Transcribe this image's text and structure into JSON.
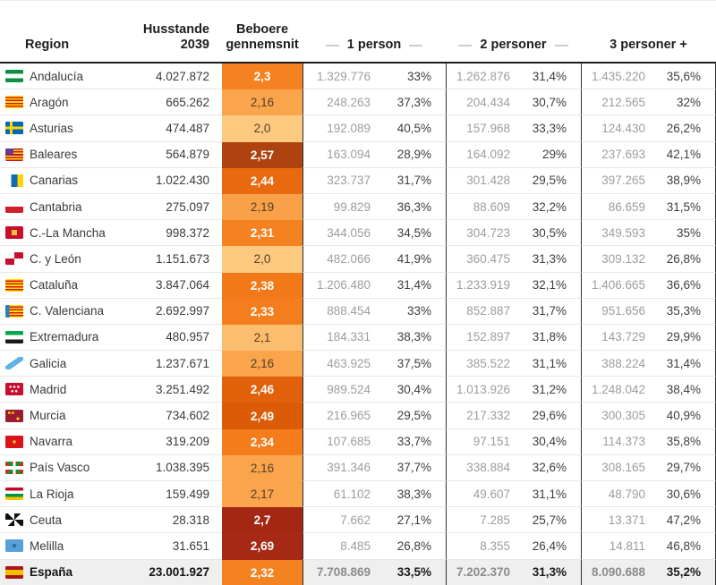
{
  "header": {
    "region": "Region",
    "husstande_line1": "Husstande",
    "husstande_line2": "2039",
    "beboere_line1": "Beboere",
    "beboere_line2": "gennemsnit",
    "group1": "1 person",
    "group2": "2 personer",
    "group3": "3 personer +"
  },
  "colors": {
    "header_border": "#1c1c1c",
    "group_divider": "#2f2f2f",
    "row_divider": "#e7e7e7",
    "total_row_bg": "#efefef",
    "count_text": "#9d9d9d",
    "percent_text": "#3e3e3e",
    "heat_low": "#FCC97F",
    "heat_mid": "#F58220",
    "heat_high": "#A42714"
  },
  "chart_data": {
    "type": "table",
    "columns": [
      "Region",
      "Husstande 2039",
      "Beboere gennemsnit",
      "1 person",
      "1 person %",
      "2 personer",
      "2 personer %",
      "3 personer +",
      "3 personer + %"
    ],
    "rows": [
      {
        "region": "Andalucía",
        "flag": "andalucia",
        "husstande": "4.027.872",
        "beboere": "2,3",
        "heat_color": "#F58220",
        "heat_text_color": "#ffffff",
        "p1_count": "1.329.776",
        "p1_pct": "33%",
        "p2_count": "1.262.876",
        "p2_pct": "31,4%",
        "p3_count": "1.435.220",
        "p3_pct": "35,6%"
      },
      {
        "region": "Aragón",
        "flag": "aragon",
        "husstande": "665.262",
        "beboere": "2,16",
        "heat_color": "#FAA54C",
        "heat_text_color": "#54402e",
        "p1_count": "248.263",
        "p1_pct": "37,3%",
        "p2_count": "204.434",
        "p2_pct": "30,7%",
        "p3_count": "212.565",
        "p3_pct": "32%"
      },
      {
        "region": "Asturias",
        "flag": "asturias",
        "husstande": "474.487",
        "beboere": "2,0",
        "heat_color": "#FCC97F",
        "heat_text_color": "#54402e",
        "p1_count": "192.089",
        "p1_pct": "40,5%",
        "p2_count": "157.968",
        "p2_pct": "33,3%",
        "p3_count": "124.430",
        "p3_pct": "26,2%"
      },
      {
        "region": "Baleares",
        "flag": "baleares",
        "husstande": "564.879",
        "beboere": "2,57",
        "heat_color": "#AE430F",
        "heat_text_color": "#ffffff",
        "p1_count": "163.094",
        "p1_pct": "28,9%",
        "p2_count": "164.092",
        "p2_pct": "29%",
        "p3_count": "237.693",
        "p3_pct": "42,1%"
      },
      {
        "region": "Canarias",
        "flag": "canarias",
        "husstande": "1.022.430",
        "beboere": "2,44",
        "heat_color": "#E8690F",
        "heat_text_color": "#ffffff",
        "p1_count": "323.737",
        "p1_pct": "31,7%",
        "p2_count": "301.428",
        "p2_pct": "29,5%",
        "p3_count": "397.265",
        "p3_pct": "38,9%"
      },
      {
        "region": "Cantabria",
        "flag": "cantabria",
        "husstande": "275.097",
        "beboere": "2,19",
        "heat_color": "#F9A148",
        "heat_text_color": "#54402e",
        "p1_count": "99.829",
        "p1_pct": "36,3%",
        "p2_count": "88.609",
        "p2_pct": "32,2%",
        "p3_count": "86.659",
        "p3_pct": "31,5%"
      },
      {
        "region": "C.-La Mancha",
        "flag": "clamancha",
        "husstande": "998.372",
        "beboere": "2,31",
        "heat_color": "#F58220",
        "heat_text_color": "#ffffff",
        "p1_count": "344.056",
        "p1_pct": "34,5%",
        "p2_count": "304.723",
        "p2_pct": "30,5%",
        "p3_count": "349.593",
        "p3_pct": "35%"
      },
      {
        "region": "C. y León",
        "flag": "cyleon",
        "husstande": "1.151.673",
        "beboere": "2,0",
        "heat_color": "#FCC97F",
        "heat_text_color": "#54402e",
        "p1_count": "482.066",
        "p1_pct": "41,9%",
        "p2_count": "360.475",
        "p2_pct": "31,3%",
        "p3_count": "309.132",
        "p3_pct": "26,8%"
      },
      {
        "region": "Cataluña",
        "flag": "cataluna",
        "husstande": "3.847.064",
        "beboere": "2,38",
        "heat_color": "#F27917",
        "heat_text_color": "#ffffff",
        "p1_count": "1.206.480",
        "p1_pct": "31,4%",
        "p2_count": "1.233.919",
        "p2_pct": "32,1%",
        "p3_count": "1.406.665",
        "p3_pct": "36,6%"
      },
      {
        "region": "C. Valenciana",
        "flag": "valenciana",
        "husstande": "2.692.997",
        "beboere": "2,33",
        "heat_color": "#F47E1D",
        "heat_text_color": "#ffffff",
        "p1_count": "888.454",
        "p1_pct": "33%",
        "p2_count": "852.887",
        "p2_pct": "31,7%",
        "p3_count": "951.656",
        "p3_pct": "35,3%"
      },
      {
        "region": "Extremadura",
        "flag": "extremadura",
        "husstande": "480.957",
        "beboere": "2,1",
        "heat_color": "#FBBD6E",
        "heat_text_color": "#54402e",
        "p1_count": "184.331",
        "p1_pct": "38,3%",
        "p2_count": "152.897",
        "p2_pct": "31,8%",
        "p3_count": "143.729",
        "p3_pct": "29,9%"
      },
      {
        "region": "Galicia",
        "flag": "galicia",
        "husstande": "1.237.671",
        "beboere": "2,16",
        "heat_color": "#FAA54C",
        "heat_text_color": "#54402e",
        "p1_count": "463.925",
        "p1_pct": "37,5%",
        "p2_count": "385.522",
        "p2_pct": "31,1%",
        "p3_count": "388.224",
        "p3_pct": "31,4%"
      },
      {
        "region": "Madrid",
        "flag": "madrid",
        "husstande": "3.251.492",
        "beboere": "2,46",
        "heat_color": "#E0610A",
        "heat_text_color": "#ffffff",
        "p1_count": "989.524",
        "p1_pct": "30,4%",
        "p2_count": "1.013.926",
        "p2_pct": "31,2%",
        "p3_count": "1.248.042",
        "p3_pct": "38,4%"
      },
      {
        "region": "Murcia",
        "flag": "murcia",
        "husstande": "734.602",
        "beboere": "2,49",
        "heat_color": "#DB5B07",
        "heat_text_color": "#ffffff",
        "p1_count": "216.965",
        "p1_pct": "29,5%",
        "p2_count": "217.332",
        "p2_pct": "29,6%",
        "p3_count": "300.305",
        "p3_pct": "40,9%"
      },
      {
        "region": "Navarra",
        "flag": "navarra",
        "husstande": "319.209",
        "beboere": "2,34",
        "heat_color": "#F47C1B",
        "heat_text_color": "#ffffff",
        "p1_count": "107.685",
        "p1_pct": "33,7%",
        "p2_count": "97.151",
        "p2_pct": "30,4%",
        "p3_count": "114.373",
        "p3_pct": "35,8%"
      },
      {
        "region": "País Vasco",
        "flag": "paisvasco",
        "husstande": "1.038.395",
        "beboere": "2,16",
        "heat_color": "#FAA54C",
        "heat_text_color": "#54402e",
        "p1_count": "391.346",
        "p1_pct": "37,7%",
        "p2_count": "338.884",
        "p2_pct": "32,6%",
        "p3_count": "308.165",
        "p3_pct": "29,7%"
      },
      {
        "region": "La Rioja",
        "flag": "larioja",
        "husstande": "159.499",
        "beboere": "2,17",
        "heat_color": "#FAA44B",
        "heat_text_color": "#54402e",
        "p1_count": "61.102",
        "p1_pct": "38,3%",
        "p2_count": "49.607",
        "p2_pct": "31,1%",
        "p3_count": "48.790",
        "p3_pct": "30,6%"
      },
      {
        "region": "Ceuta",
        "flag": "ceuta",
        "husstande": "28.318",
        "beboere": "2,7",
        "heat_color": "#A42714",
        "heat_text_color": "#ffffff",
        "p1_count": "7.662",
        "p1_pct": "27,1%",
        "p2_count": "7.285",
        "p2_pct": "25,7%",
        "p3_count": "13.371",
        "p3_pct": "47,2%"
      },
      {
        "region": "Melilla",
        "flag": "melilla",
        "husstande": "31.651",
        "beboere": "2,69",
        "heat_color": "#A62916",
        "heat_text_color": "#ffffff",
        "p1_count": "8.485",
        "p1_pct": "26,8%",
        "p2_count": "8.355",
        "p2_pct": "26,4%",
        "p3_count": "14.811",
        "p3_pct": "46,8%"
      },
      {
        "region": "España",
        "flag": "espana",
        "is_total": true,
        "husstande": "23.001.927",
        "beboere": "2,32",
        "heat_color": "#F58220",
        "heat_text_color": "#ffffff",
        "p1_count": "7.708.869",
        "p1_pct": "33,5%",
        "p2_count": "7.202.370",
        "p2_pct": "31,3%",
        "p3_count": "8.090.688",
        "p3_pct": "35,2%"
      }
    ]
  }
}
